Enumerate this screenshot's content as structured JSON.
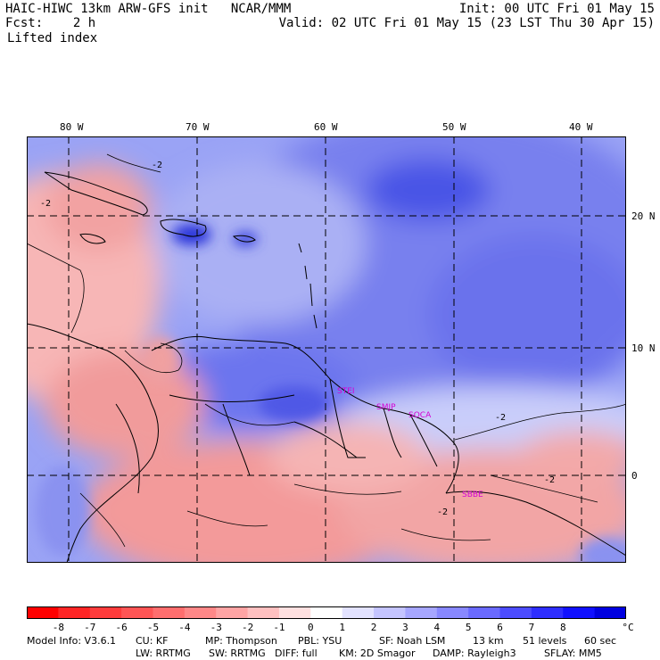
{
  "header": {
    "left_line1": "HAIC-HIWC 13km ARW-GFS init   NCAR/MMM",
    "left_line2": "Fcst:    2 h",
    "field_name": "Lifted index",
    "right_line1": "Init: 00 UTC Fri 01 May 15",
    "right_line2": "Valid: 02 UTC Fri 01 May 15 (23 LST Thu 30 Apr 15)"
  },
  "longitude_labels": [
    "80 W",
    "70 W",
    "60 W",
    "50 W",
    "40 W"
  ],
  "latitude_labels": [
    "20 N",
    "10 N",
    "0"
  ],
  "stations": [
    "STEI",
    "SMJP",
    "SOCA",
    "SBBE"
  ],
  "contour_label": "-2",
  "colorbar": {
    "ticks": [
      "-8",
      "-7",
      "-6",
      "-5",
      "-4",
      "-3",
      "-2",
      "-1",
      "0",
      "1",
      "2",
      "3",
      "4",
      "5",
      "6",
      "7",
      "8"
    ],
    "unit": "°C",
    "colors": [
      "#ff0000",
      "#ff2525",
      "#ff3c3c",
      "#ff5555",
      "#ff6e6e",
      "#ff8888",
      "#ffa4a4",
      "#ffc0c0",
      "#ffe0e0",
      "#ffffff",
      "#e2e2ff",
      "#c4c4ff",
      "#a6a6ff",
      "#8888ff",
      "#6a6aff",
      "#4c4cff",
      "#2e2eff",
      "#1010ff",
      "#0000e0"
    ]
  },
  "footer": {
    "line1": [
      "Model Info: V3.6.1",
      "CU: KF",
      "MP: Thompson",
      "PBL: YSU",
      "SF: Noah LSM",
      "13 km",
      "51 levels",
      "60 sec"
    ],
    "line2": [
      "LW: RRTMG",
      "SW: RRTMG",
      "DIFF: full",
      "KM: 2D Smagor",
      "DAMP: Rayleigh3",
      "SFLAY: MM5"
    ]
  }
}
